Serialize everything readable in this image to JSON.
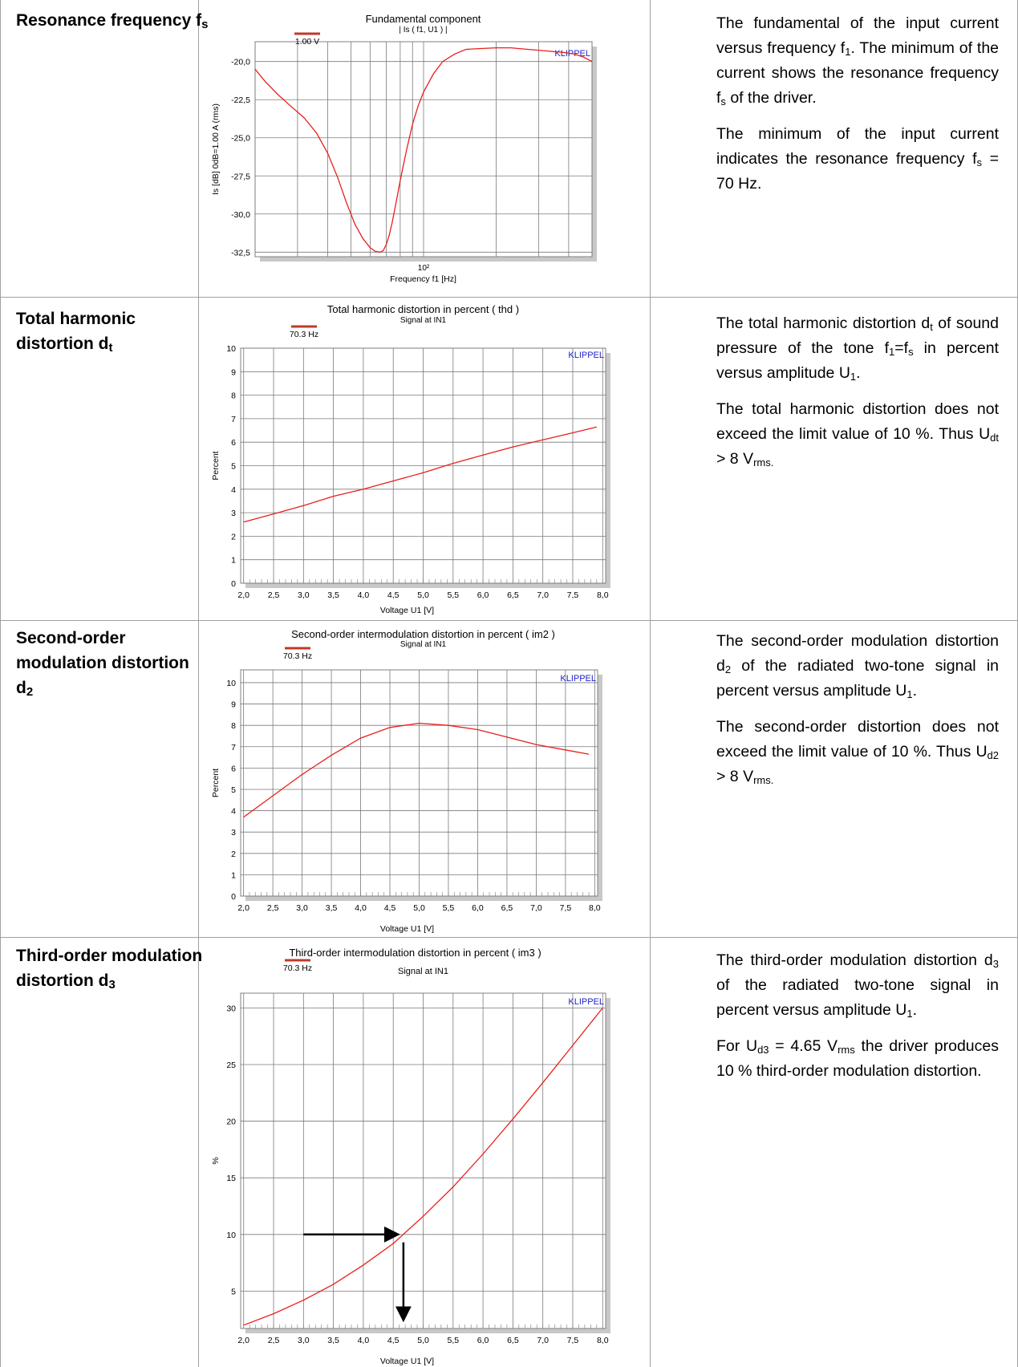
{
  "rows": [
    {
      "title_main": "Resonance frequency f",
      "title_sub": "s",
      "desc_html": "<p>The fundamental of the input current versus frequency f<sub>1</sub>. The minimum of the current shows the resonance frequency f<sub>s</sub> of the driver.</p><p>The minimum of the input current indicates the resonance frequency f<sub>s</sub> = 70 Hz.</p>"
    },
    {
      "title_main": "Total harmonic distortion d",
      "title_sub": "t",
      "desc_html": "<p>The total harmonic distortion d<sub>t</sub> of sound pressure of the tone f<sub>1</sub>=f<sub>s</sub> in percent versus amplitude U<sub>1</sub>.</p><p>The total harmonic distortion does not exceed the limit value of 10 %. Thus U<sub>dt</sub> &gt; 8 V<sub>rms.</sub></p>"
    },
    {
      "title_main": "Second-order modulation distortion d",
      "title_sub": "2",
      "desc_html": "<p>The second-order modulation distortion d<sub>2</sub> of the radiated two-tone signal in percent versus amplitude U<sub>1</sub>.</p><p>The second-order distortion does not exceed the limit value of 10 %. Thus U<sub>d2</sub> &gt; 8 V<sub>rms.</sub></p>"
    },
    {
      "title_main": "Third-order modulation distortion d",
      "title_sub": "3",
      "desc_html": "<p>The third-order modulation distortion d<sub>3</sub> of the radiated two-tone signal in percent versus amplitude U<sub>1</sub>.</p><p>For U<sub>d3</sub> = 4.65 V<sub>rms</sub> the driver produces 10 % third-order modulation distortion.</p>"
    }
  ],
  "chart_data": [
    {
      "type": "line",
      "title": "Fundamental component",
      "subtitle": "| Is ( f1, U1 ) |",
      "legend": "1.00 V",
      "watermark": "KLIPPEL",
      "xlabel": "Frequency f1  [Hz]",
      "ylabel": "Is [dB]  0dB=1.00 A (rms)",
      "x_scale": "log",
      "xlim": [
        20,
        500
      ],
      "ylim": [
        -32.8,
        -18.7
      ],
      "x_tick_label": "10²",
      "y_ticks": [
        "-20,0",
        "-22,5",
        "-25,0",
        "-27,5",
        "-30,0",
        "-32,5"
      ],
      "grid": true,
      "line_color": "#e8201c",
      "series": [
        {
          "x": [
            20,
            22,
            25,
            28,
            32,
            36,
            40,
            44,
            48,
            52,
            56,
            60,
            63,
            66,
            68,
            70,
            72,
            74,
            77,
            80,
            85,
            90,
            95,
            100,
            110,
            120,
            135,
            150,
            170,
            200,
            230,
            270,
            320,
            380,
            420,
            460,
            500
          ],
          "values": [
            -20.5,
            -21.3,
            -22.2,
            -22.9,
            -23.7,
            -24.7,
            -26.0,
            -27.6,
            -29.3,
            -30.7,
            -31.6,
            -32.2,
            -32.45,
            -32.5,
            -32.4,
            -32.0,
            -31.4,
            -30.6,
            -29.2,
            -27.8,
            -25.8,
            -24.1,
            -22.9,
            -22.0,
            -20.8,
            -20.0,
            -19.5,
            -19.2,
            -19.15,
            -19.1,
            -19.1,
            -19.2,
            -19.3,
            -19.4,
            -19.5,
            -19.7,
            -20.0
          ]
        }
      ]
    },
    {
      "type": "line",
      "title": "Total harmonic distortion in percent  ( thd )",
      "subtitle": "Signal at IN1",
      "legend": "70.3 Hz",
      "watermark": "KLIPPEL",
      "xlabel": "Voltage U1  [V]",
      "ylabel": "Percent",
      "xlim": [
        1.95,
        8.05
      ],
      "ylim": [
        0,
        10
      ],
      "x_ticks": [
        "2,0",
        "2,5",
        "3,0",
        "3,5",
        "4,0",
        "4,5",
        "5,0",
        "5,5",
        "6,0",
        "6,5",
        "7,0",
        "7,5",
        "8,0"
      ],
      "y_ticks": [
        "0",
        "1",
        "2",
        "3",
        "4",
        "5",
        "6",
        "7",
        "8",
        "9",
        "10"
      ],
      "grid": true,
      "line_color": "#e8201c",
      "series": [
        {
          "x": [
            2.0,
            2.5,
            3.0,
            3.5,
            4.0,
            4.5,
            5.0,
            5.5,
            6.0,
            6.5,
            7.0,
            7.5,
            7.9
          ],
          "values": [
            2.6,
            2.95,
            3.3,
            3.7,
            4.0,
            4.35,
            4.7,
            5.1,
            5.45,
            5.8,
            6.1,
            6.4,
            6.65
          ]
        }
      ]
    },
    {
      "type": "line",
      "title": "Second-order intermodulation distortion in percent   ( im2 )",
      "subtitle": "Signal at IN1",
      "legend": "70.3 Hz",
      "watermark": "KLIPPEL",
      "xlabel": "Voltage U1  [V]",
      "ylabel": "Percent",
      "xlim": [
        1.95,
        8.05
      ],
      "ylim": [
        0,
        10.6
      ],
      "x_ticks": [
        "2,0",
        "2,5",
        "3,0",
        "3,5",
        "4,0",
        "4,5",
        "5,0",
        "5,5",
        "6,0",
        "6,5",
        "7,0",
        "7,5",
        "8,0"
      ],
      "y_ticks": [
        "0",
        "1",
        "2",
        "3",
        "4",
        "5",
        "6",
        "7",
        "8",
        "9",
        "10"
      ],
      "grid": true,
      "line_color": "#e8201c",
      "series": [
        {
          "x": [
            2.0,
            2.5,
            3.0,
            3.5,
            4.0,
            4.5,
            5.0,
            5.5,
            6.0,
            6.5,
            7.0,
            7.5,
            7.9
          ],
          "values": [
            3.7,
            4.7,
            5.7,
            6.6,
            7.4,
            7.9,
            8.1,
            8.0,
            7.8,
            7.45,
            7.1,
            6.85,
            6.65
          ]
        }
      ]
    },
    {
      "type": "line",
      "title": "Third-order intermodulation distortion in percent  ( im3 )",
      "subtitle": "Signal at IN1",
      "legend": "70.3 Hz",
      "watermark": "KLIPPEL",
      "xlabel": "Voltage U1  [V]",
      "ylabel": "%",
      "xlim": [
        1.95,
        8.05
      ],
      "ylim": [
        1.7,
        31.3
      ],
      "x_ticks": [
        "2,0",
        "2,5",
        "3,0",
        "3,5",
        "4,0",
        "4,5",
        "5,0",
        "5,5",
        "6,0",
        "6,5",
        "7,0",
        "7,5",
        "8,0"
      ],
      "y_ticks": [
        "5",
        "10",
        "15",
        "20",
        "25",
        "30"
      ],
      "grid": true,
      "line_color": "#e8201c",
      "annotations": [
        "arrow at 10 % toward curve",
        "arrow down to 4.65 V"
      ],
      "series": [
        {
          "x": [
            2.0,
            2.5,
            3.0,
            3.5,
            4.0,
            4.5,
            5.0,
            5.5,
            6.0,
            6.5,
            7.0,
            7.5,
            8.0
          ],
          "values": [
            2.0,
            3.0,
            4.2,
            5.6,
            7.3,
            9.2,
            11.6,
            14.2,
            17.1,
            20.2,
            23.4,
            26.7,
            30.0
          ]
        }
      ]
    }
  ]
}
